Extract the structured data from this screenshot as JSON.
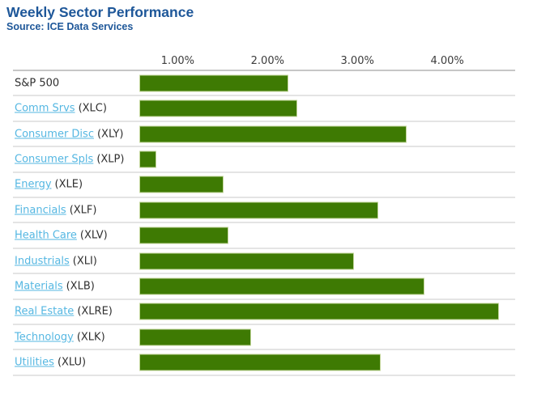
{
  "header": {
    "title": "Weekly Sector Performance",
    "source": "Source: ICE Data Services"
  },
  "colors": {
    "title_blue": "#1e5799",
    "link_blue": "#55b7e2",
    "bar_green": "#3e7a03",
    "bar_border_green": "#c3d69b",
    "text_dark": "#2f2f2f",
    "tick_text": "#3c3c3c",
    "row_line": "#e4e4e4",
    "axis_line": "#c6c6c6"
  },
  "chart_data": {
    "type": "bar",
    "orientation": "horizontal",
    "title": "Weekly Sector Performance",
    "subtitle": "Source: ICE Data Services",
    "unit": "%",
    "xlim": [
      0,
      5
    ],
    "grid": false,
    "legend": false,
    "ticks": [
      {
        "label": "1.00%",
        "value": 1.0
      },
      {
        "label": "2.00%",
        "value": 2.0
      },
      {
        "label": "3.00%",
        "value": 3.0
      },
      {
        "label": "4.00%",
        "value": 4.0
      }
    ],
    "rows": [
      {
        "label": "S&P 500",
        "ticker_label": "",
        "is_link": false,
        "value": 2.23
      },
      {
        "label": "Comm Srvs",
        "ticker_label": "(XLC)",
        "is_link": true,
        "value": 2.33
      },
      {
        "label": "Consumer Disc",
        "ticker_label": "(XLY)",
        "is_link": true,
        "value": 3.55
      },
      {
        "label": "Consumer Spls",
        "ticker_label": "(XLP)",
        "is_link": true,
        "value": 0.76
      },
      {
        "label": "Energy",
        "ticker_label": "(XLE)",
        "is_link": true,
        "value": 1.51
      },
      {
        "label": "Financials",
        "ticker_label": "(XLF)",
        "is_link": true,
        "value": 3.23
      },
      {
        "label": "Health Care",
        "ticker_label": "(XLV)",
        "is_link": true,
        "value": 1.56
      },
      {
        "label": "Industrials",
        "ticker_label": "(XLI)",
        "is_link": true,
        "value": 2.96
      },
      {
        "label": "Materials",
        "ticker_label": "(XLB)",
        "is_link": true,
        "value": 3.75
      },
      {
        "label": "Real Estate",
        "ticker_label": "(XLRE)",
        "is_link": true,
        "value": 4.58
      },
      {
        "label": "Technology",
        "ticker_label": "(XLK)",
        "is_link": true,
        "value": 1.82
      },
      {
        "label": "Utilities",
        "ticker_label": "(XLU)",
        "is_link": true,
        "value": 3.26
      }
    ]
  }
}
